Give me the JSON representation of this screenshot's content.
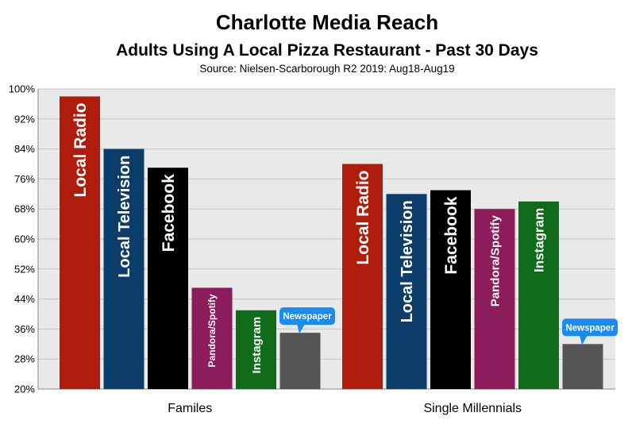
{
  "chart_data": {
    "type": "bar",
    "title": "Charlotte Media Reach",
    "subtitle": "Adults Using A Local Pizza Restaurant - Past 30 Days",
    "source": "Source: Nielsen-Scarborough R2 2019: Aug18-Aug19",
    "categories": [
      "Familes",
      "Single Millennials"
    ],
    "ylim": [
      20,
      100
    ],
    "yticks": [
      "20%",
      "28%",
      "36%",
      "44%",
      "52%",
      "60%",
      "68%",
      "76%",
      "84%",
      "92%",
      "100%"
    ],
    "ytick_values": [
      20,
      28,
      36,
      44,
      52,
      60,
      68,
      76,
      84,
      92,
      100
    ],
    "grid": true,
    "groups": [
      {
        "category": "Familes",
        "bars": [
          {
            "label": "Local Radio",
            "value": 98,
            "color": "#b01c0c"
          },
          {
            "label": "Local Television",
            "value": 84,
            "color": "#0c3d6a"
          },
          {
            "label": "Facebook",
            "value": 79,
            "color": "#000000"
          },
          {
            "label": "Pandora/Spotify",
            "value": 47,
            "color": "#8c1c5a"
          },
          {
            "label": "Instagram",
            "value": 41,
            "color": "#0f6b18"
          },
          {
            "label": "Newspaper",
            "value": 35,
            "color": "#555555",
            "callout": true
          }
        ]
      },
      {
        "category": "Single Millennials",
        "bars": [
          {
            "label": "Local Radio",
            "value": 80,
            "color": "#b01c0c"
          },
          {
            "label": "Local Television",
            "value": 72,
            "color": "#0c3d6a"
          },
          {
            "label": "Facebook",
            "value": 73,
            "color": "#000000"
          },
          {
            "label": "Pandora/Spotify",
            "value": 68,
            "color": "#8c1c5a"
          },
          {
            "label": "Instagram",
            "value": 70,
            "color": "#0f6b18"
          },
          {
            "label": "Newspaper",
            "value": 32,
            "color": "#555555",
            "callout": true
          }
        ]
      }
    ],
    "plot_background": "#e9e9e9",
    "callout_color": "#1a8cf0"
  }
}
